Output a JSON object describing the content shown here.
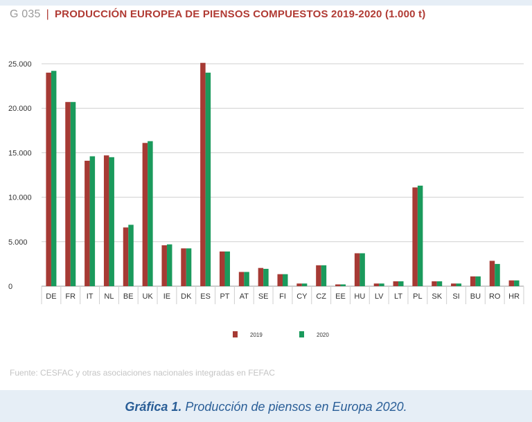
{
  "header": {
    "code": "G 035",
    "separator": "|",
    "title": "PRODUCCIÓN EUROPEA DE PIENSOS COMPUESTOS 2019-2020 (1.000 t)"
  },
  "source": "Fuente: CESFAC y otras asociaciones nacionales integradas en FEFAC",
  "caption": {
    "label": "Gráfica 1.",
    "text": " Producción de piensos en Europa 2020."
  },
  "colors": {
    "series_2019": "#a63a34",
    "series_2020": "#1a9a5c",
    "title": "#b03a33",
    "caption": "#2a5e97",
    "band": "#e6eef6"
  },
  "chart_data": {
    "type": "bar",
    "title": "PRODUCCIÓN EUROPEA DE PIENSOS COMPUESTOS 2019-2020 (1.000 t)",
    "xlabel": "",
    "ylabel": "",
    "categories": [
      "DE",
      "FR",
      "IT",
      "NL",
      "BE",
      "UK",
      "IE",
      "DK",
      "ES",
      "PT",
      "AT",
      "SE",
      "FI",
      "CY",
      "CZ",
      "EE",
      "HU",
      "LV",
      "LT",
      "PL",
      "SK",
      "SI",
      "BU",
      "RO",
      "HR"
    ],
    "series": [
      {
        "name": "2019",
        "values": [
          24000,
          20700,
          14100,
          14700,
          6600,
          16100,
          4600,
          4250,
          25100,
          3900,
          1600,
          2050,
          1350,
          300,
          2350,
          200,
          3700,
          300,
          550,
          11100,
          550,
          300,
          1100,
          2850,
          650
        ]
      },
      {
        "name": "2020",
        "values": [
          24200,
          20700,
          14600,
          14500,
          6900,
          16300,
          4700,
          4250,
          24000,
          3900,
          1600,
          1950,
          1350,
          300,
          2350,
          200,
          3700,
          300,
          550,
          11300,
          550,
          300,
          1100,
          2500,
          650
        ]
      }
    ],
    "ylim": [
      0,
      25000
    ],
    "yticks": [
      0,
      5000,
      10000,
      15000,
      20000,
      25000
    ],
    "ytick_labels": [
      "0",
      "5.000",
      "10.000",
      "15.000",
      "20.000",
      "25.000"
    ],
    "grid": true,
    "legend": "bottom-center"
  }
}
